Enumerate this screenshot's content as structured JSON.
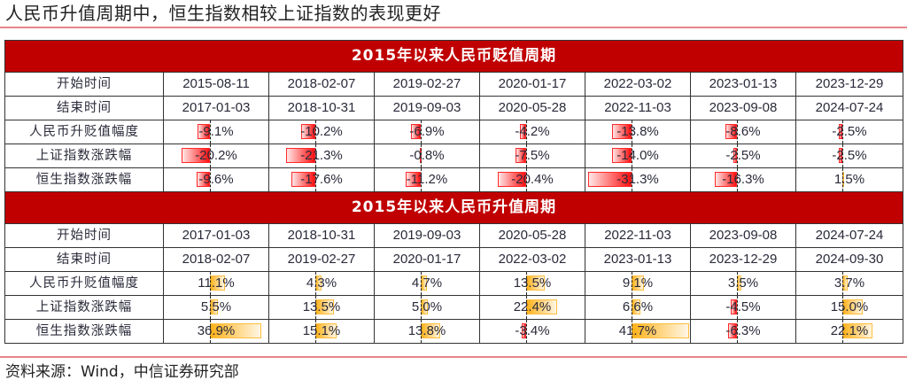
{
  "title": "人民币升值周期中，恒生指数相较上证指数的表现更好",
  "source": "资料来源：Wind，中信证券研究部",
  "colors": {
    "header_bg": "#c00000",
    "neg_bar": "#ff1010",
    "pos_bar": "#ffb21a",
    "rule": "#e8858a"
  },
  "row_labels": [
    "开始时间",
    "结束时间",
    "人民币升贬值幅度",
    "上证指数涨跌幅",
    "恒生指数涨跌幅"
  ],
  "depreciation": {
    "header": "2015年以来人民币贬值周期",
    "start": [
      "2015-08-11",
      "2018-02-07",
      "2019-02-27",
      "2020-01-17",
      "2022-03-02",
      "2023-01-13",
      "2023-12-29"
    ],
    "end": [
      "2017-01-03",
      "2018-10-31",
      "2019-09-03",
      "2020-05-28",
      "2022-11-03",
      "2023-09-08",
      "2024-07-24"
    ],
    "rmb": [
      "-9.1%",
      "-10.2%",
      "-6.9%",
      "-4.2%",
      "-13.8%",
      "-8.6%",
      "-2.5%"
    ],
    "sse": [
      "-20.2%",
      "-21.3%",
      "-0.8%",
      "-7.5%",
      "-14.0%",
      "-2.5%",
      "-2.5%"
    ],
    "hsi": [
      "-9.6%",
      "-17.6%",
      "-11.2%",
      "-20.4%",
      "-31.3%",
      "-16.3%",
      "1.5%"
    ]
  },
  "appreciation": {
    "header": "2015年以来人民币升值周期",
    "start": [
      "2017-01-03",
      "2018-10-31",
      "2019-09-03",
      "2020-05-28",
      "2022-11-03",
      "2023-09-08",
      "2024-07-24"
    ],
    "end": [
      "2018-02-07",
      "2019-02-27",
      "2020-01-17",
      "2022-03-02",
      "2023-01-13",
      "2023-12-29",
      "2024-09-30"
    ],
    "rmb": [
      "11.1%",
      "4.3%",
      "4.7%",
      "13.5%",
      "9.1%",
      "3.5%",
      "3.7%"
    ],
    "sse": [
      "5.5%",
      "13.5%",
      "5.0%",
      "22.4%",
      "6.6%",
      "-4.5%",
      "15.0%"
    ],
    "hsi": [
      "36.9%",
      "15.1%",
      "13.8%",
      "-3.4%",
      "41.7%",
      "-6.3%",
      "22.1%"
    ]
  },
  "chart_data": {
    "type": "table",
    "title": "人民币升值周期中，恒生指数相较上证指数的表现更好",
    "columns": [
      "开始时间",
      "结束时间",
      "人民币升贬值幅度",
      "上证指数涨跌幅",
      "恒生指数涨跌幅"
    ],
    "sections": [
      {
        "name": "2015年以来人民币贬值周期",
        "rows": [
          {
            "start": "2015-08-11",
            "end": "2017-01-03",
            "rmb": -9.1,
            "sse": -20.2,
            "hsi": -9.6
          },
          {
            "start": "2018-02-07",
            "end": "2018-10-31",
            "rmb": -10.2,
            "sse": -21.3,
            "hsi": -17.6
          },
          {
            "start": "2019-02-27",
            "end": "2019-09-03",
            "rmb": -6.9,
            "sse": -0.8,
            "hsi": -11.2
          },
          {
            "start": "2020-01-17",
            "end": "2020-05-28",
            "rmb": -4.2,
            "sse": -7.5,
            "hsi": -20.4
          },
          {
            "start": "2022-03-02",
            "end": "2022-11-03",
            "rmb": -13.8,
            "sse": -14.0,
            "hsi": -31.3
          },
          {
            "start": "2023-01-13",
            "end": "2023-09-08",
            "rmb": -8.6,
            "sse": -2.5,
            "hsi": -16.3
          },
          {
            "start": "2023-12-29",
            "end": "2024-07-24",
            "rmb": -2.5,
            "sse": -2.5,
            "hsi": 1.5
          }
        ]
      },
      {
        "name": "2015年以来人民币升值周期",
        "rows": [
          {
            "start": "2017-01-03",
            "end": "2018-02-07",
            "rmb": 11.1,
            "sse": 5.5,
            "hsi": 36.9
          },
          {
            "start": "2018-10-31",
            "end": "2019-02-27",
            "rmb": 4.3,
            "sse": 13.5,
            "hsi": 15.1
          },
          {
            "start": "2019-09-03",
            "end": "2020-01-17",
            "rmb": 4.7,
            "sse": 5.0,
            "hsi": 13.8
          },
          {
            "start": "2020-05-28",
            "end": "2022-03-02",
            "rmb": 13.5,
            "sse": 22.4,
            "hsi": -3.4
          },
          {
            "start": "2022-11-03",
            "end": "2023-01-13",
            "rmb": 9.1,
            "sse": 6.6,
            "hsi": 41.7
          },
          {
            "start": "2023-09-08",
            "end": "2023-12-29",
            "rmb": 3.5,
            "sse": -4.5,
            "hsi": -6.3
          },
          {
            "start": "2024-07-24",
            "end": "2024-09-30",
            "rmb": 3.7,
            "sse": 15.0,
            "hsi": 22.1
          }
        ]
      }
    ],
    "units": "%",
    "source": "资料来源：Wind，中信证券研究部"
  }
}
